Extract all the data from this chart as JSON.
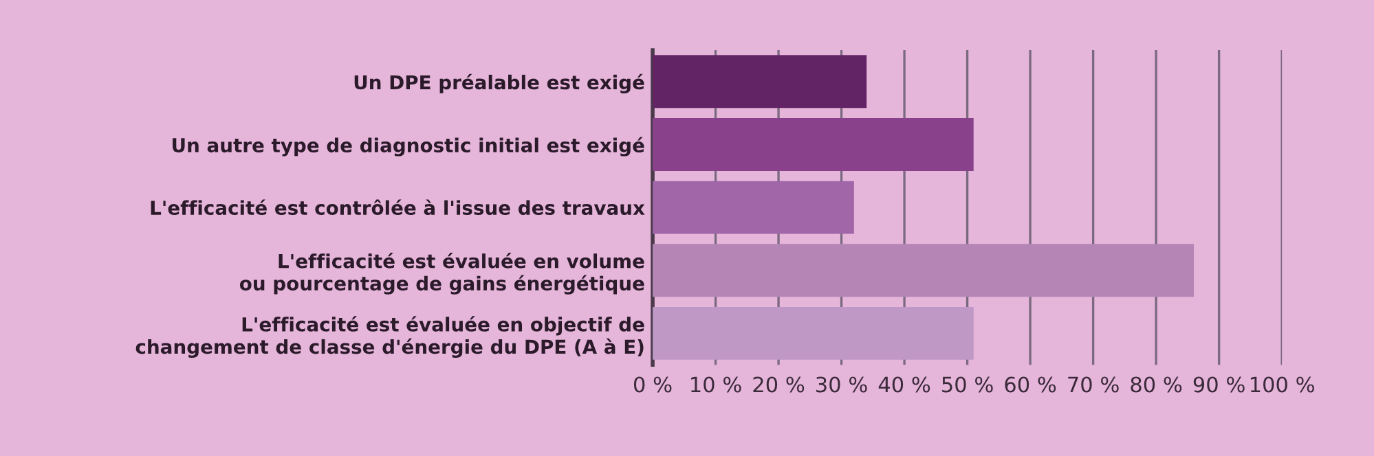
{
  "chart_data": {
    "type": "bar",
    "orientation": "horizontal",
    "categories": [
      "Un DPE préalable est exigé",
      "Un autre type de diagnostic initial est exigé",
      "L'efficacité est contrôlée à l'issue des travaux",
      "L'efficacité est évaluée en volume\nou pourcentage de gains énergétique",
      "L'efficacité est évaluée en objectif de\nchangement de classe d'énergie du DPE (A à E)"
    ],
    "values": [
      34,
      51,
      32,
      86,
      51
    ],
    "colors": [
      "#632466",
      "#8a418b",
      "#a066a8",
      "#b585b6",
      "#bf98c5"
    ],
    "xlim": [
      0,
      100
    ],
    "xticks": [
      {
        "value": 0,
        "label": "0 %"
      },
      {
        "value": 10,
        "label": "10 %"
      },
      {
        "value": 20,
        "label": "20 %"
      },
      {
        "value": 30,
        "label": "30 %"
      },
      {
        "value": 40,
        "label": "40 %"
      },
      {
        "value": 50,
        "label": "50 %"
      },
      {
        "value": 60,
        "label": "60 %"
      },
      {
        "value": 70,
        "label": "70 %"
      },
      {
        "value": 80,
        "label": "80 %"
      },
      {
        "value": 90,
        "label": "90 %"
      },
      {
        "value": 100,
        "label": "100 %"
      }
    ],
    "grid": "x"
  }
}
